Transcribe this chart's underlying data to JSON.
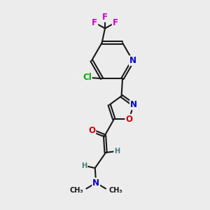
{
  "bg_color": "#ececec",
  "bond_color": "#1a1a1a",
  "bond_width": 1.5,
  "dbo": 0.06,
  "atom_colors": {
    "C": "#1a1a1a",
    "N": "#0000cc",
    "O": "#cc0000",
    "F": "#cc00cc",
    "Cl": "#00aa00",
    "H": "#408080"
  },
  "fs": 8.5,
  "fs2": 7.0,
  "fs3": 6.5
}
